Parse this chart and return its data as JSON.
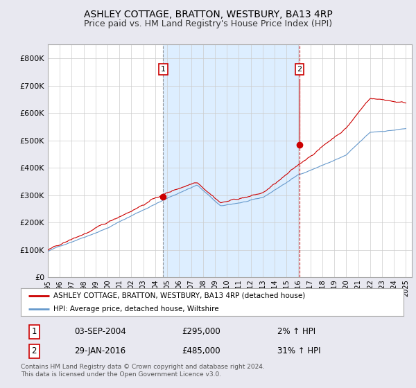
{
  "title": "ASHLEY COTTAGE, BRATTON, WESTBURY, BA13 4RP",
  "subtitle": "Price paid vs. HM Land Registry's House Price Index (HPI)",
  "ylim": [
    0,
    850000
  ],
  "xlim_start": 1995.0,
  "xlim_end": 2025.5,
  "purchase1_date": 2004.67,
  "purchase1_price": 295000,
  "purchase1_label": "1",
  "purchase2_date": 2016.08,
  "purchase2_price": 485000,
  "purchase2_label": "2",
  "legend_line1": "ASHLEY COTTAGE, BRATTON, WESTBURY, BA13 4RP (detached house)",
  "legend_line2": "HPI: Average price, detached house, Wiltshire",
  "table_row1": [
    "1",
    "03-SEP-2004",
    "£295,000",
    "2% ↑ HPI"
  ],
  "table_row2": [
    "2",
    "29-JAN-2016",
    "£485,000",
    "31% ↑ HPI"
  ],
  "footnote": "Contains HM Land Registry data © Crown copyright and database right 2024.\nThis data is licensed under the Open Government Licence v3.0.",
  "red_line_color": "#cc0000",
  "blue_line_color": "#6699cc",
  "bg_color": "#e8e8f0",
  "plot_bg_color": "#ffffff",
  "shade_color": "#ddeeff",
  "grid_color": "#cccccc",
  "title_fontsize": 10,
  "subtitle_fontsize": 9
}
